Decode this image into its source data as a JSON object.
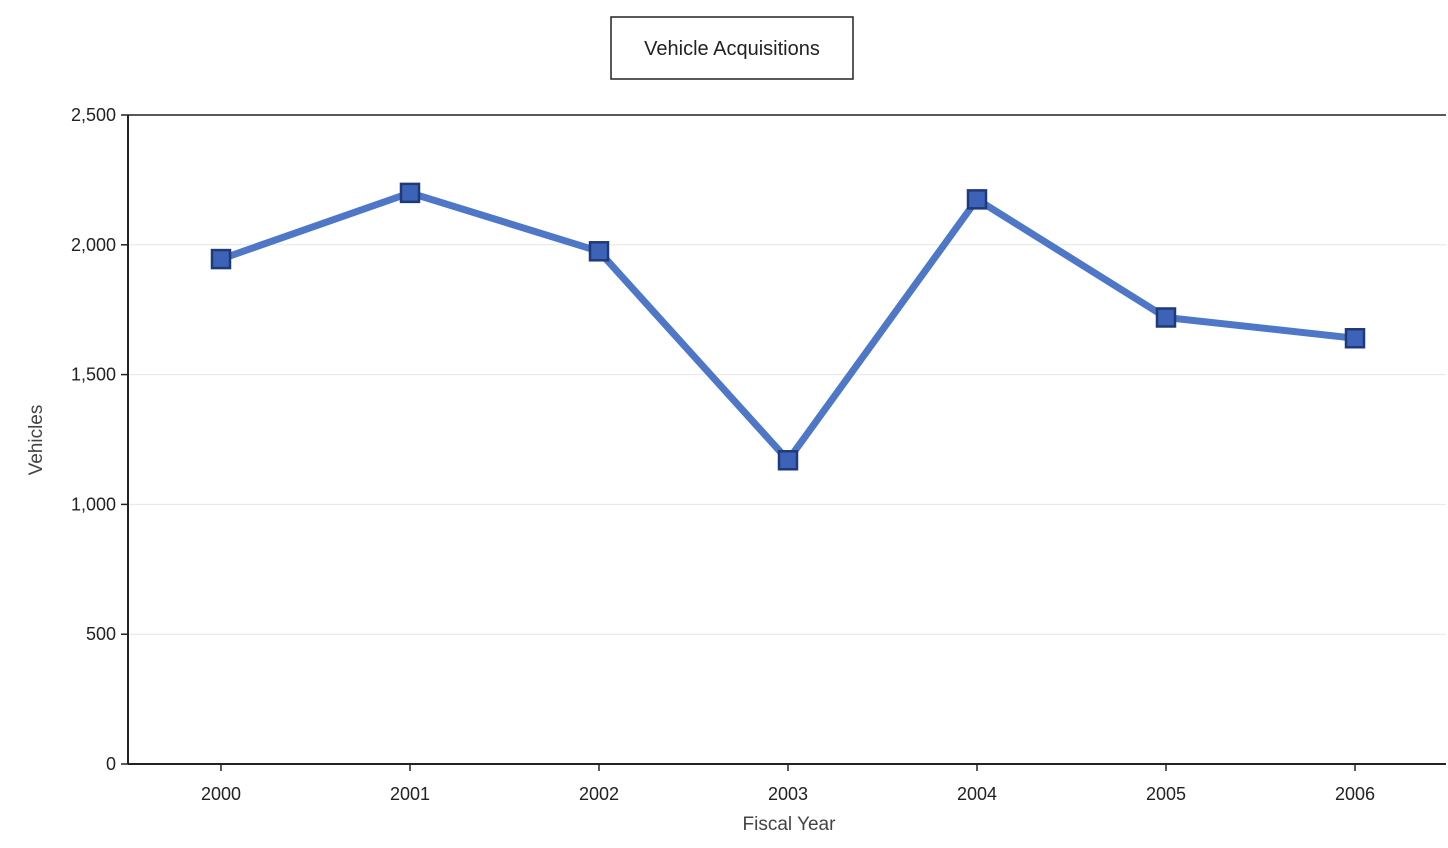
{
  "chart_data": {
    "type": "line",
    "title": "Vehicle Acquisitions",
    "xlabel": "Fiscal Year",
    "ylabel": "Vehicles",
    "categories": [
      "2000",
      "2001",
      "2002",
      "2003",
      "2004",
      "2005",
      "2006"
    ],
    "series": [
      {
        "values": [
          1945,
          2200,
          1975,
          1170,
          2175,
          1720,
          1640
        ]
      }
    ],
    "ylim": [
      0,
      2500
    ],
    "yticks": [
      0,
      500,
      1000,
      1500,
      2000,
      2500
    ],
    "ytick_labels": [
      "0",
      "500",
      "1,000",
      "1,500",
      "2,000",
      "2,500"
    ],
    "grid": true,
    "legend": "none",
    "colors": {
      "line": "#4f77c8",
      "marker_fill": "#3d63b8",
      "marker_stroke": "#1f3a78",
      "grid": "#e6e6e6",
      "axis": "#222222"
    }
  }
}
